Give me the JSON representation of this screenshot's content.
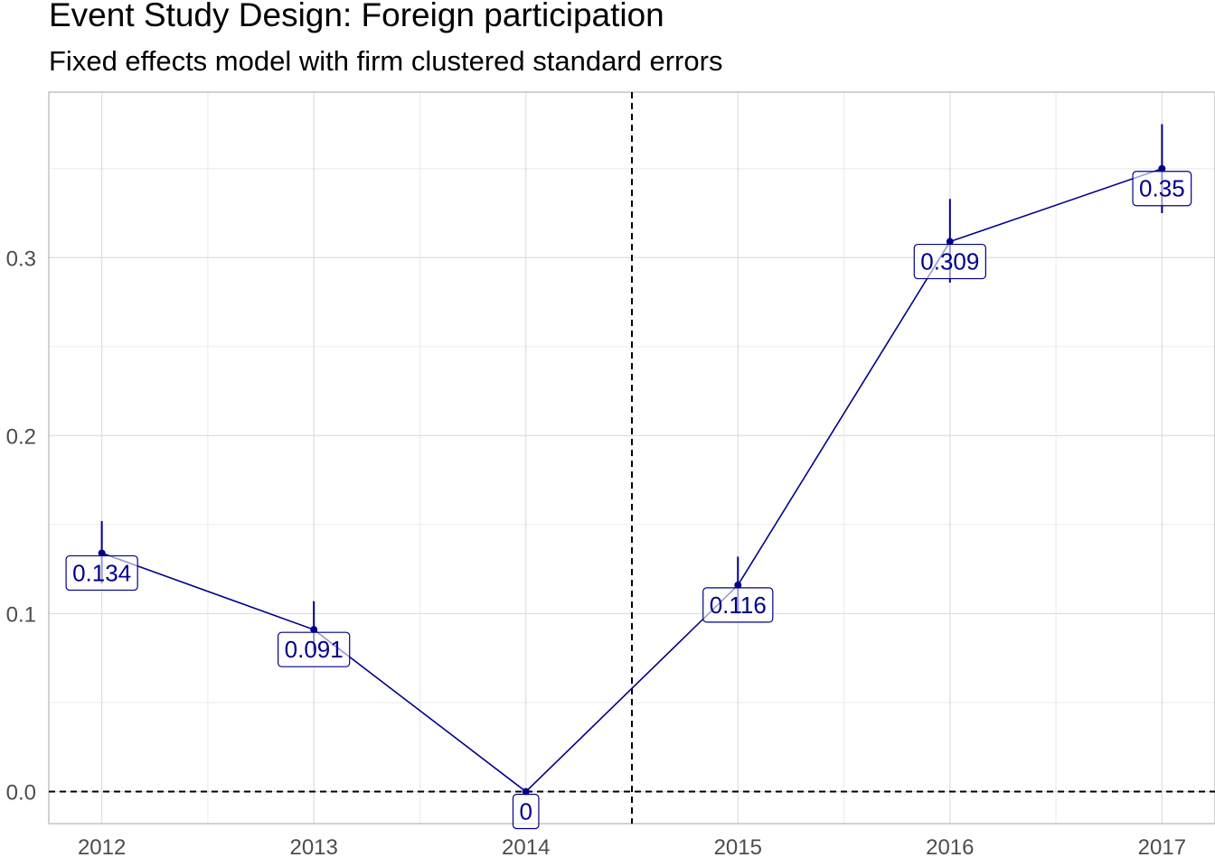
{
  "chart_data": {
    "type": "line",
    "title": "Event Study Design: Foreign participation",
    "subtitle": "Fixed effects model with firm clustered standard errors",
    "xlabel": "",
    "ylabel": "",
    "x": [
      2012,
      2013,
      2014,
      2015,
      2016,
      2017
    ],
    "x_tick_labels": [
      "2012",
      "2013",
      "2014",
      "2015",
      "2016",
      "2017"
    ],
    "y": [
      0.134,
      0.091,
      0,
      0.116,
      0.309,
      0.35
    ],
    "point_labels": [
      "0.134",
      "0.091",
      "0",
      "0.116",
      "0.309",
      "0.35"
    ],
    "ci_low": [
      0.117,
      0.079,
      0,
      0.1,
      0.286,
      0.325
    ],
    "ci_high": [
      0.152,
      0.107,
      0,
      0.132,
      0.333,
      0.375
    ],
    "y_ticks": [
      0.0,
      0.1,
      0.2,
      0.3
    ],
    "y_tick_labels": [
      "0.0",
      "0.1",
      "0.2",
      "0.3"
    ],
    "xlim": [
      2011.75,
      2017.25
    ],
    "ylim": [
      -0.018,
      0.393
    ],
    "reference_lines": {
      "vertical_x": 2014.5,
      "horizontal_y": 0
    },
    "grid": true,
    "legend": "none",
    "colors": {
      "series": "#00008B",
      "grid": "#dedede",
      "reference": "#000000"
    }
  }
}
